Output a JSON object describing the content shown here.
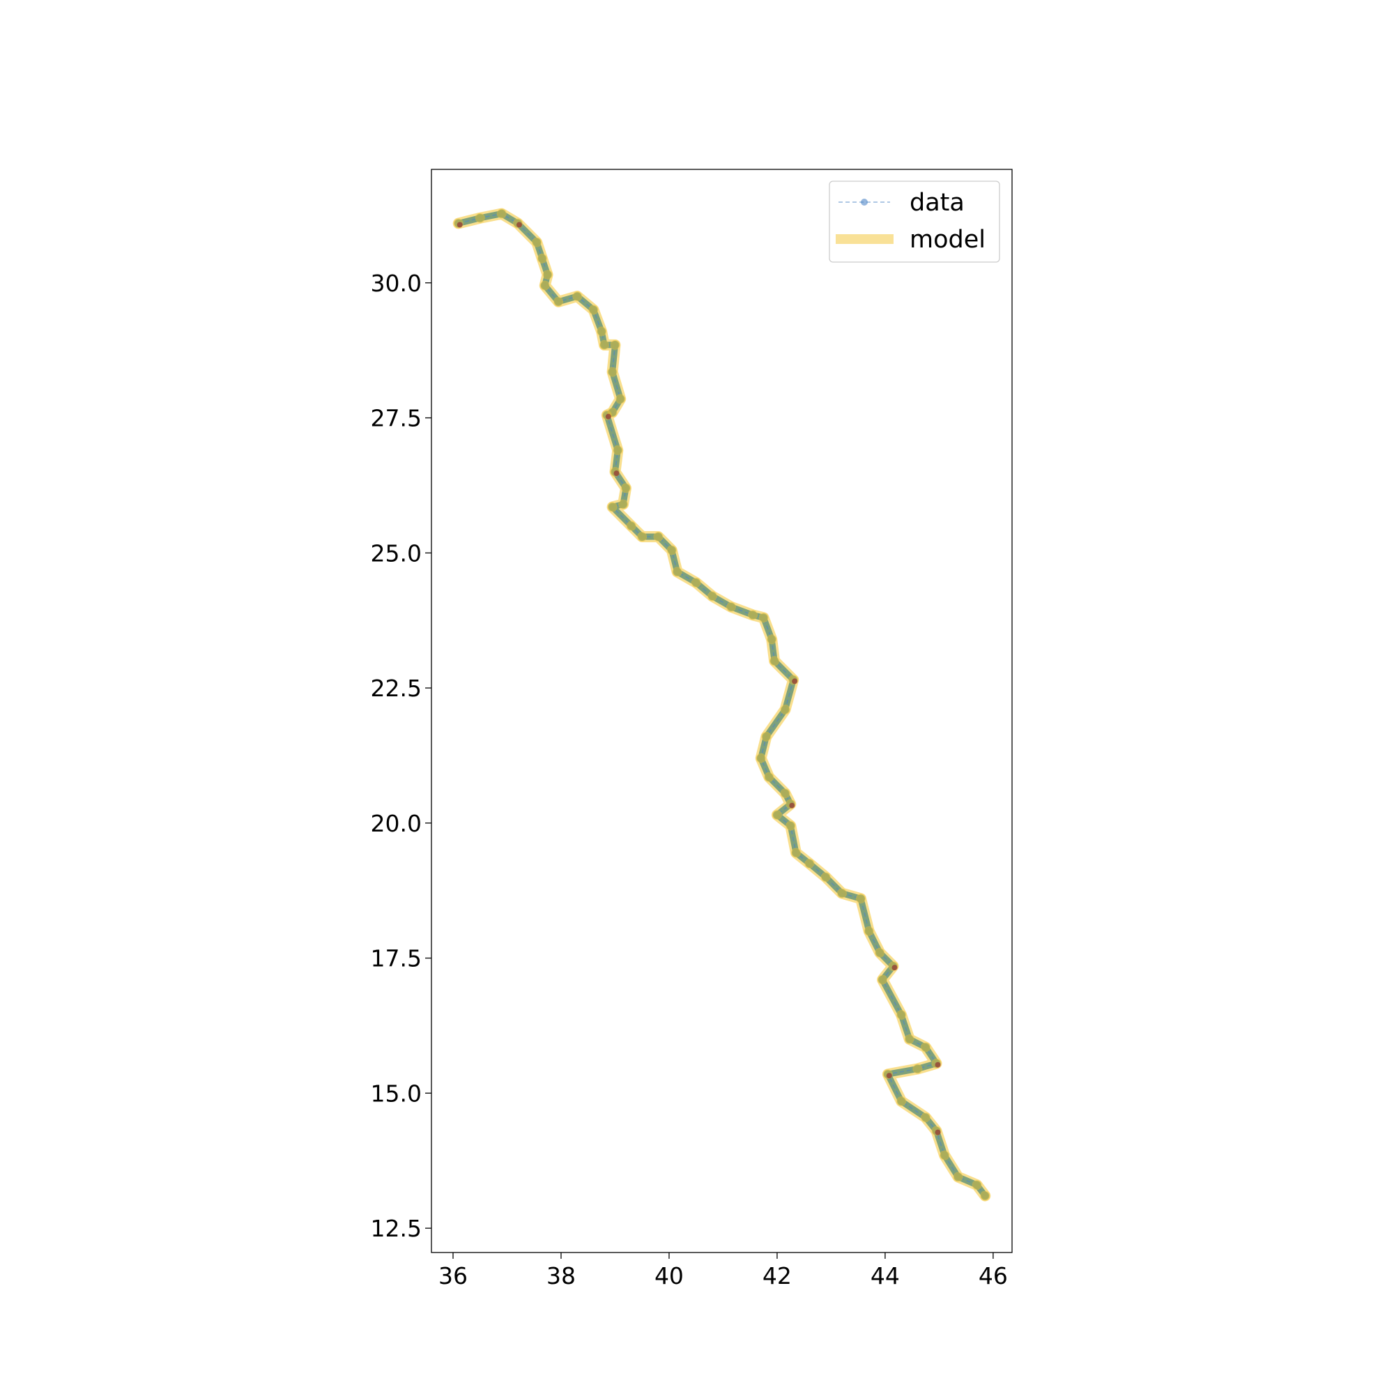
{
  "chart_data": {
    "type": "line",
    "title": "",
    "xlabel": "",
    "ylabel": "",
    "xlim": [
      35.6,
      46.35
    ],
    "ylim": [
      12.05,
      32.1
    ],
    "xticks": [
      36,
      38,
      40,
      42,
      44,
      46
    ],
    "xtick_labels": [
      "36",
      "38",
      "40",
      "42",
      "44",
      "46"
    ],
    "yticks": [
      12.5,
      15.0,
      17.5,
      20.0,
      22.5,
      25.0,
      27.5,
      30.0
    ],
    "ytick_labels": [
      "12.5",
      "15.0",
      "17.5",
      "20.0",
      "22.5",
      "25.0",
      "27.5",
      "30.0"
    ],
    "grid": false,
    "legend": {
      "placement": "top-right",
      "entries": [
        "data",
        "model"
      ]
    },
    "colors": {
      "data": "#4f86c6",
      "model": "#f4c430",
      "endpoint": "#8b1a2b",
      "path": "#6f9a7a"
    },
    "series": [
      {
        "name": "data",
        "style": "dashed line with circle markers",
        "x": [
          36.1,
          36.5,
          36.9,
          37.2,
          37.55,
          37.65,
          37.75,
          37.7,
          37.95,
          38.3,
          38.6,
          38.75,
          38.8,
          39.0,
          38.95,
          39.1,
          38.95,
          38.85,
          39.05,
          39.0,
          39.2,
          39.15,
          38.95,
          39.3,
          39.5,
          39.8,
          40.05,
          40.15,
          40.5,
          40.8,
          41.15,
          41.55,
          41.75,
          41.9,
          41.95,
          42.3,
          42.15,
          41.8,
          41.7,
          41.85,
          42.15,
          42.25,
          42.0,
          42.25,
          42.35,
          42.6,
          42.9,
          43.2,
          43.55,
          43.7,
          43.9,
          44.15,
          43.95,
          44.3,
          44.45,
          44.75,
          44.95,
          44.6,
          44.05,
          44.3,
          44.75,
          44.95,
          45.1,
          45.35,
          45.7,
          45.85
        ],
        "y": [
          31.1,
          31.2,
          31.28,
          31.1,
          30.75,
          30.45,
          30.15,
          29.95,
          29.65,
          29.75,
          29.5,
          29.1,
          28.85,
          28.85,
          28.35,
          27.85,
          27.6,
          27.55,
          26.9,
          26.5,
          26.2,
          25.9,
          25.85,
          25.5,
          25.3,
          25.3,
          25.05,
          24.65,
          24.45,
          24.2,
          24.0,
          23.85,
          23.8,
          23.4,
          23.0,
          22.65,
          22.1,
          21.6,
          21.2,
          20.85,
          20.55,
          20.35,
          20.15,
          19.95,
          19.45,
          19.25,
          19.0,
          18.7,
          18.6,
          18.0,
          17.6,
          17.35,
          17.1,
          16.45,
          16.0,
          15.85,
          15.55,
          15.45,
          15.35,
          14.85,
          14.55,
          14.3,
          13.85,
          13.45,
          13.3,
          13.1
        ]
      },
      {
        "name": "model",
        "style": "thick translucent line",
        "x": [
          36.1,
          36.5,
          36.9,
          37.2,
          37.55,
          37.65,
          37.75,
          37.7,
          37.95,
          38.3,
          38.6,
          38.75,
          38.8,
          39.0,
          38.95,
          39.1,
          38.95,
          38.85,
          39.05,
          39.0,
          39.2,
          39.15,
          38.95,
          39.3,
          39.5,
          39.8,
          40.05,
          40.15,
          40.5,
          40.8,
          41.15,
          41.55,
          41.75,
          41.9,
          41.95,
          42.3,
          42.15,
          41.8,
          41.7,
          41.85,
          42.15,
          42.25,
          42.0,
          42.25,
          42.35,
          42.6,
          42.9,
          43.2,
          43.55,
          43.7,
          43.9,
          44.15,
          43.95,
          44.3,
          44.45,
          44.75,
          44.95,
          44.6,
          44.05,
          44.3,
          44.75,
          44.95,
          45.1,
          45.35,
          45.7,
          45.85
        ],
        "y": [
          31.1,
          31.2,
          31.28,
          31.1,
          30.75,
          30.45,
          30.15,
          29.95,
          29.65,
          29.75,
          29.5,
          29.1,
          28.85,
          28.85,
          28.35,
          27.85,
          27.6,
          27.55,
          26.9,
          26.5,
          26.2,
          25.9,
          25.85,
          25.5,
          25.3,
          25.3,
          25.05,
          24.65,
          24.45,
          24.2,
          24.0,
          23.85,
          23.8,
          23.4,
          23.0,
          22.65,
          22.1,
          21.6,
          21.2,
          20.85,
          20.55,
          20.35,
          20.15,
          19.95,
          19.45,
          19.25,
          19.0,
          18.7,
          18.6,
          18.0,
          17.6,
          17.35,
          17.1,
          16.45,
          16.0,
          15.85,
          15.55,
          15.45,
          15.35,
          14.85,
          14.55,
          14.3,
          13.85,
          13.45,
          13.3,
          13.1
        ]
      }
    ]
  }
}
